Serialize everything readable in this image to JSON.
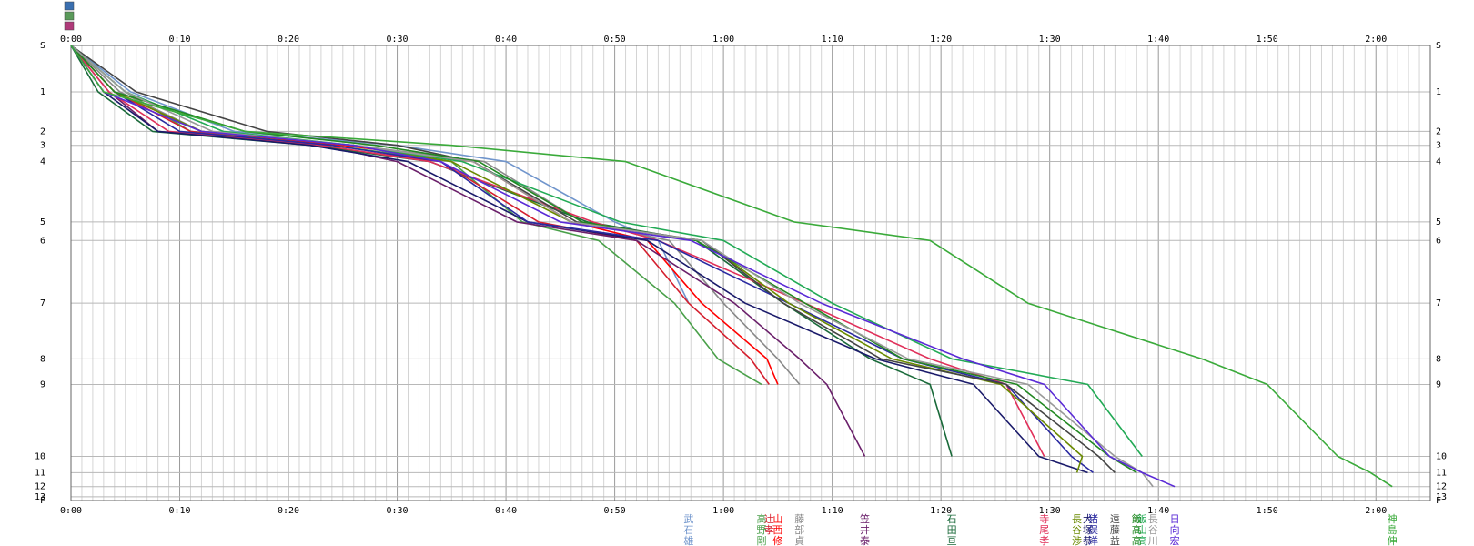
{
  "chart_data": {
    "type": "line",
    "x_unit": "minutes",
    "xlim": [
      0,
      125
    ],
    "x_tick_labels": [
      "0:00",
      "0:10",
      "0:20",
      "0:30",
      "0:40",
      "0:50",
      "1:00",
      "1:10",
      "1:20",
      "1:30",
      "1:40",
      "1:50",
      "2:00"
    ],
    "checkpoints": [
      {
        "label": "S",
        "pos": 0
      },
      {
        "label": "1",
        "pos": 1.0
      },
      {
        "label": "2",
        "pos": 1.85
      },
      {
        "label": "3",
        "pos": 2.15
      },
      {
        "label": "4",
        "pos": 2.5
      },
      {
        "label": "5",
        "pos": 3.8
      },
      {
        "label": "6",
        "pos": 4.2
      },
      {
        "label": "7",
        "pos": 5.55
      },
      {
        "label": "8",
        "pos": 6.75
      },
      {
        "label": "9",
        "pos": 7.3
      },
      {
        "label": "10",
        "pos": 8.85
      },
      {
        "label": "11",
        "pos": 9.2
      },
      {
        "label": "12",
        "pos": 9.5
      },
      {
        "label": "13",
        "pos": 9.72
      },
      {
        "label": "F",
        "pos": 9.8
      }
    ],
    "legend_icon_colors": [
      "#3a6fb0",
      "#5a9a5a",
      "#b03a7a"
    ],
    "series": [
      {
        "name": "武石 雄",
        "color": "#7095cc",
        "t": [
          0,
          5.5,
          15,
          30,
          40,
          50,
          54,
          56.8
        ]
      },
      {
        "name": "高野 剛",
        "color": "#4aa04a",
        "t": [
          0,
          5,
          11,
          24,
          35,
          41.5,
          48.5,
          55.5,
          59.5,
          63.5
        ]
      },
      {
        "name": "辻 孝",
        "color": "#d41f2e",
        "t": [
          0,
          4,
          11,
          22,
          34,
          43,
          52,
          56.8,
          62.5,
          64.2
        ]
      },
      {
        "name": "山西 修",
        "color": "#ff0000",
        "t": [
          0,
          4,
          12,
          25,
          37,
          46,
          53,
          58,
          64,
          65
        ]
      },
      {
        "name": "藤部 貞",
        "color": "#888888",
        "t": [
          0,
          4.5,
          12,
          26,
          38,
          47,
          55,
          60,
          65,
          67
        ]
      },
      {
        "name": "笠井 泰",
        "color": "#6a1f6a",
        "t": [
          0,
          3.5,
          8,
          23,
          30,
          41,
          52,
          61,
          67,
          69.5,
          73
        ]
      },
      {
        "name": "石田 亘",
        "color": "#1a6a3a",
        "t": [
          0,
          2.5,
          7.5,
          22,
          33,
          47.5,
          57.5,
          65.5,
          73.5,
          79,
          81
        ]
      },
      {
        "name": "寺尾 孝",
        "color": "#e0305a",
        "t": [
          0,
          3.5,
          9,
          23,
          33,
          48,
          54,
          67.5,
          79,
          86,
          89.5
        ]
      },
      {
        "name": "大塚 恭",
        "color": "#1a1a6a",
        "t": [
          0,
          3,
          8,
          22,
          31,
          42,
          53,
          62,
          74,
          83,
          89,
          93.5
        ]
      },
      {
        "name": "猪俣 洋",
        "color": "#2a2aa0",
        "t": [
          0,
          4,
          10,
          24,
          34,
          42,
          54,
          66,
          76.5,
          86,
          92,
          94
        ]
      },
      {
        "name": "長谷 渉",
        "color": "#6a8a00",
        "t": [
          0,
          4,
          12,
          26,
          35,
          46,
          58,
          66,
          75.5,
          85.5,
          93,
          92.5
        ]
      },
      {
        "name": "遠藤 益",
        "color": "#444444",
        "t": [
          0,
          6,
          18,
          30,
          37,
          46.5,
          58,
          65.5,
          74.5,
          86,
          94.5,
          96
        ]
      },
      {
        "name": "飯山 高",
        "color": "#22aa55",
        "t": [
          0,
          5,
          14,
          26,
          36,
          50.5,
          60,
          70,
          81,
          93.5,
          98.5
        ]
      },
      {
        "name": "飯高 高",
        "color": "#228822",
        "t": [
          0,
          4,
          16,
          28,
          37.5,
          47,
          57.5,
          67.5,
          76.5,
          87,
          95.5,
          98
        ]
      },
      {
        "name": "長谷 川",
        "color": "#999999",
        "t": [
          0,
          5,
          13,
          26,
          37,
          46,
          58,
          67,
          77,
          88,
          96,
          98.5,
          99.5
        ]
      },
      {
        "name": "日向 宏",
        "color": "#5a2ad6",
        "t": [
          0,
          3,
          12,
          26,
          34,
          45,
          57,
          69,
          82,
          89.5,
          95.5,
          98.5,
          101.5
        ]
      },
      {
        "name": "神島 伸",
        "color": "#3aaa3a",
        "t": [
          0,
          3,
          16,
          35,
          51,
          66.5,
          79,
          88,
          104,
          110,
          116.5,
          119.5,
          121.5
        ]
      }
    ]
  }
}
